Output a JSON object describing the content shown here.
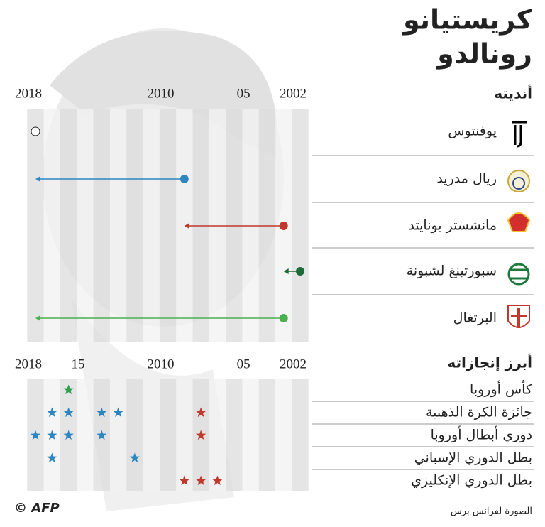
{
  "title_lines": [
    "كريستيانو",
    "رونالدو"
  ],
  "clubs_heading": "أنديته",
  "clubs_axis": {
    "xlim": [
      2018,
      2002
    ],
    "xticks": [
      2018,
      2010,
      {
        "value": 2005,
        "label": "05"
      },
      2002
    ]
  },
  "clubs": [
    {
      "name": "يوفنتوس",
      "start": 2018,
      "end": null,
      "color": "#222222"
    },
    {
      "name": "ريال مدريد",
      "start": 2009,
      "end": 2018,
      "color": "#2e86c1"
    },
    {
      "name": "مانشستر يونايتد",
      "start": 2003,
      "end": 2009,
      "color": "#c0392b"
    },
    {
      "name": "سبورتينغ لشبونة",
      "start": 2002,
      "end": 2003,
      "color": "#1e6b3a"
    },
    {
      "name": "البرتغال",
      "start": 2003,
      "end": 2018,
      "color": "#4caf50"
    }
  ],
  "achievements_heading": "أبرز إنجازاته",
  "achievements_axis": {
    "xlim": [
      2018,
      2002
    ],
    "xticks": [
      2018,
      {
        "value": 2015,
        "label": "15"
      },
      2010,
      {
        "value": 2005,
        "label": "05"
      },
      2002
    ]
  },
  "achievements": [
    {
      "name": "كأس أوروبا",
      "stars": [
        {
          "year": 2016,
          "color": "#2e9e4f"
        }
      ]
    },
    {
      "name": "جائزة الكرة الذهبية",
      "stars": [
        {
          "year": 2017,
          "color": "#2e86c1"
        },
        {
          "year": 2016,
          "color": "#2e86c1"
        },
        {
          "year": 2014,
          "color": "#2e86c1"
        },
        {
          "year": 2013,
          "color": "#2e86c1"
        },
        {
          "year": 2008,
          "color": "#c0392b"
        }
      ]
    },
    {
      "name": "دوري أبطال أوروبا",
      "stars": [
        {
          "year": 2018,
          "color": "#2e86c1"
        },
        {
          "year": 2017,
          "color": "#2e86c1"
        },
        {
          "year": 2016,
          "color": "#2e86c1"
        },
        {
          "year": 2014,
          "color": "#2e86c1"
        },
        {
          "year": 2008,
          "color": "#c0392b"
        }
      ]
    },
    {
      "name": "بطل الدوري الإسباني",
      "stars": [
        {
          "year": 2017,
          "color": "#2e86c1"
        },
        {
          "year": 2012,
          "color": "#2e86c1"
        }
      ]
    },
    {
      "name": "بطل الدوري الإنكليزي",
      "stars": [
        {
          "year": 2009,
          "color": "#c0392b"
        },
        {
          "year": 2008,
          "color": "#c0392b"
        },
        {
          "year": 2007,
          "color": "#c0392b"
        }
      ]
    }
  ],
  "photo_credit": "الصورة لفرانس برس",
  "logo": "© AFP"
}
